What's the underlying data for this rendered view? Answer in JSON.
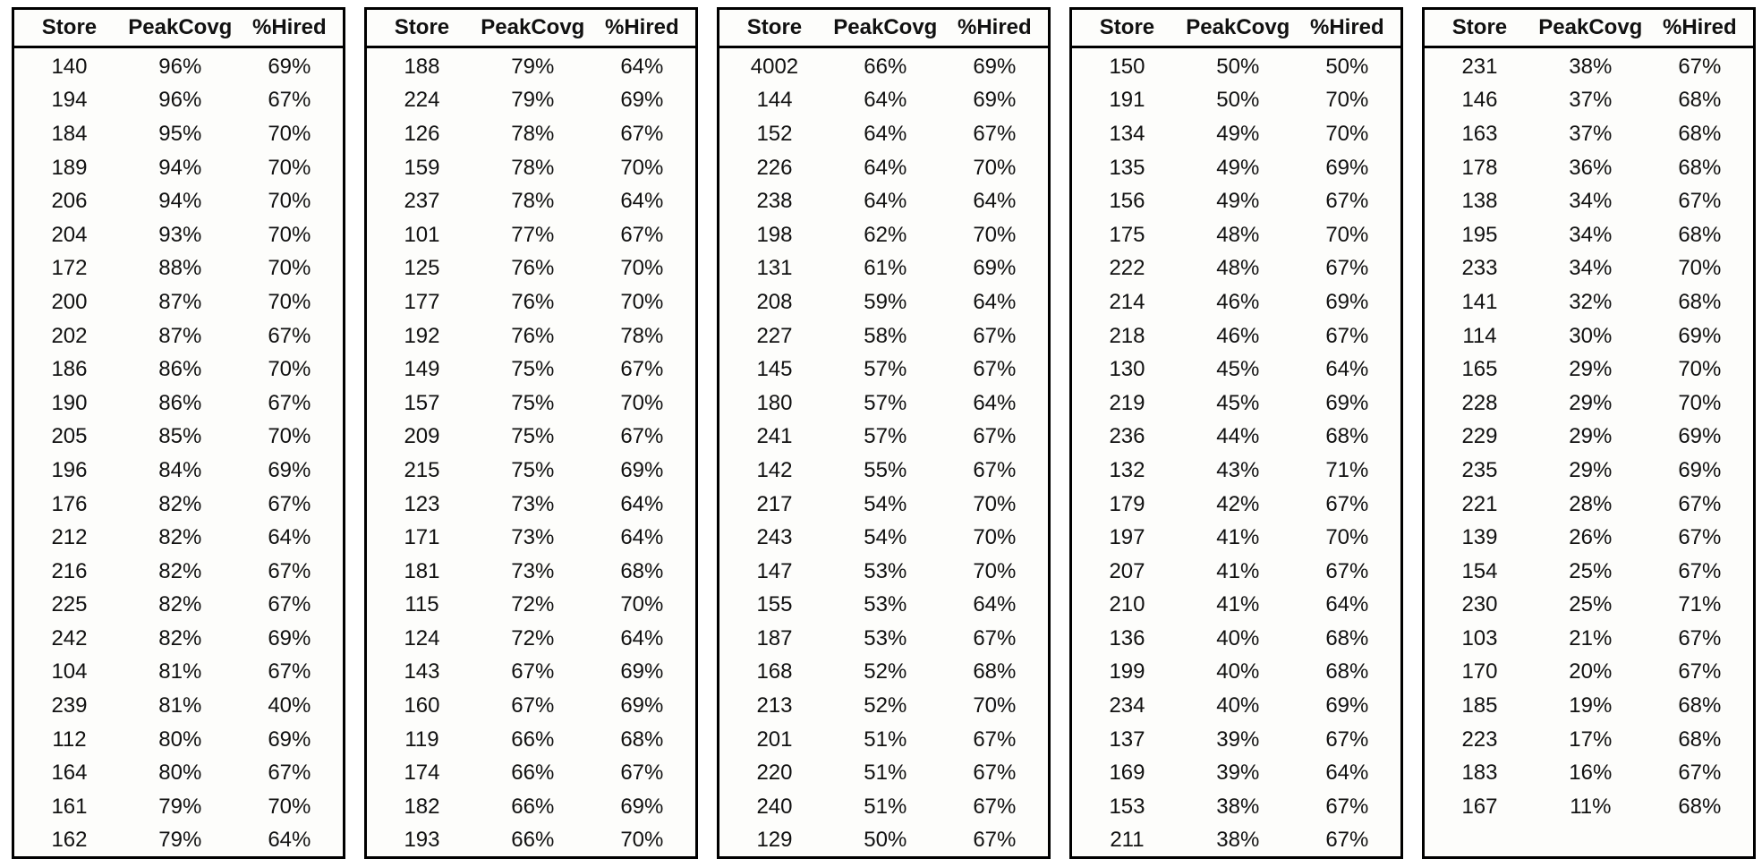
{
  "colors": {
    "border": "#000000",
    "text": "#111111",
    "background": "#ffffff",
    "panel": "#fdfdfb"
  },
  "chart_data": {
    "type": "table",
    "title": "",
    "columns": [
      "Store",
      "PeakCovg",
      "%Hired"
    ],
    "tables": [
      {
        "rows": [
          [
            "140",
            "96%",
            "69%"
          ],
          [
            "194",
            "96%",
            "67%"
          ],
          [
            "184",
            "95%",
            "70%"
          ],
          [
            "189",
            "94%",
            "70%"
          ],
          [
            "206",
            "94%",
            "70%"
          ],
          [
            "204",
            "93%",
            "70%"
          ],
          [
            "172",
            "88%",
            "70%"
          ],
          [
            "200",
            "87%",
            "70%"
          ],
          [
            "202",
            "87%",
            "67%"
          ],
          [
            "186",
            "86%",
            "70%"
          ],
          [
            "190",
            "86%",
            "67%"
          ],
          [
            "205",
            "85%",
            "70%"
          ],
          [
            "196",
            "84%",
            "69%"
          ],
          [
            "176",
            "82%",
            "67%"
          ],
          [
            "212",
            "82%",
            "64%"
          ],
          [
            "216",
            "82%",
            "67%"
          ],
          [
            "225",
            "82%",
            "67%"
          ],
          [
            "242",
            "82%",
            "69%"
          ],
          [
            "104",
            "81%",
            "67%"
          ],
          [
            "239",
            "81%",
            "40%"
          ],
          [
            "112",
            "80%",
            "69%"
          ],
          [
            "164",
            "80%",
            "67%"
          ],
          [
            "161",
            "79%",
            "70%"
          ],
          [
            "162",
            "79%",
            "64%"
          ]
        ]
      },
      {
        "rows": [
          [
            "188",
            "79%",
            "64%"
          ],
          [
            "224",
            "79%",
            "69%"
          ],
          [
            "126",
            "78%",
            "67%"
          ],
          [
            "159",
            "78%",
            "70%"
          ],
          [
            "237",
            "78%",
            "64%"
          ],
          [
            "101",
            "77%",
            "67%"
          ],
          [
            "125",
            "76%",
            "70%"
          ],
          [
            "177",
            "76%",
            "70%"
          ],
          [
            "192",
            "76%",
            "78%"
          ],
          [
            "149",
            "75%",
            "67%"
          ],
          [
            "157",
            "75%",
            "70%"
          ],
          [
            "209",
            "75%",
            "67%"
          ],
          [
            "215",
            "75%",
            "69%"
          ],
          [
            "123",
            "73%",
            "64%"
          ],
          [
            "171",
            "73%",
            "64%"
          ],
          [
            "181",
            "73%",
            "68%"
          ],
          [
            "115",
            "72%",
            "70%"
          ],
          [
            "124",
            "72%",
            "64%"
          ],
          [
            "143",
            "67%",
            "69%"
          ],
          [
            "160",
            "67%",
            "69%"
          ],
          [
            "119",
            "66%",
            "68%"
          ],
          [
            "174",
            "66%",
            "67%"
          ],
          [
            "182",
            "66%",
            "69%"
          ],
          [
            "193",
            "66%",
            "70%"
          ]
        ]
      },
      {
        "rows": [
          [
            "4002",
            "66%",
            "69%"
          ],
          [
            "144",
            "64%",
            "69%"
          ],
          [
            "152",
            "64%",
            "67%"
          ],
          [
            "226",
            "64%",
            "70%"
          ],
          [
            "238",
            "64%",
            "64%"
          ],
          [
            "198",
            "62%",
            "70%"
          ],
          [
            "131",
            "61%",
            "69%"
          ],
          [
            "208",
            "59%",
            "64%"
          ],
          [
            "227",
            "58%",
            "67%"
          ],
          [
            "145",
            "57%",
            "67%"
          ],
          [
            "180",
            "57%",
            "64%"
          ],
          [
            "241",
            "57%",
            "67%"
          ],
          [
            "142",
            "55%",
            "67%"
          ],
          [
            "217",
            "54%",
            "70%"
          ],
          [
            "243",
            "54%",
            "70%"
          ],
          [
            "147",
            "53%",
            "70%"
          ],
          [
            "155",
            "53%",
            "64%"
          ],
          [
            "187",
            "53%",
            "67%"
          ],
          [
            "168",
            "52%",
            "68%"
          ],
          [
            "213",
            "52%",
            "70%"
          ],
          [
            "201",
            "51%",
            "67%"
          ],
          [
            "220",
            "51%",
            "67%"
          ],
          [
            "240",
            "51%",
            "67%"
          ],
          [
            "129",
            "50%",
            "67%"
          ]
        ]
      },
      {
        "rows": [
          [
            "150",
            "50%",
            "50%"
          ],
          [
            "191",
            "50%",
            "70%"
          ],
          [
            "134",
            "49%",
            "70%"
          ],
          [
            "135",
            "49%",
            "69%"
          ],
          [
            "156",
            "49%",
            "67%"
          ],
          [
            "175",
            "48%",
            "70%"
          ],
          [
            "222",
            "48%",
            "67%"
          ],
          [
            "214",
            "46%",
            "69%"
          ],
          [
            "218",
            "46%",
            "67%"
          ],
          [
            "130",
            "45%",
            "64%"
          ],
          [
            "219",
            "45%",
            "69%"
          ],
          [
            "236",
            "44%",
            "68%"
          ],
          [
            "132",
            "43%",
            "71%"
          ],
          [
            "179",
            "42%",
            "67%"
          ],
          [
            "197",
            "41%",
            "70%"
          ],
          [
            "207",
            "41%",
            "67%"
          ],
          [
            "210",
            "41%",
            "64%"
          ],
          [
            "136",
            "40%",
            "68%"
          ],
          [
            "199",
            "40%",
            "68%"
          ],
          [
            "234",
            "40%",
            "69%"
          ],
          [
            "137",
            "39%",
            "67%"
          ],
          [
            "169",
            "39%",
            "64%"
          ],
          [
            "153",
            "38%",
            "67%"
          ],
          [
            "211",
            "38%",
            "67%"
          ]
        ]
      },
      {
        "rows": [
          [
            "231",
            "38%",
            "67%"
          ],
          [
            "146",
            "37%",
            "68%"
          ],
          [
            "163",
            "37%",
            "68%"
          ],
          [
            "178",
            "36%",
            "68%"
          ],
          [
            "138",
            "34%",
            "67%"
          ],
          [
            "195",
            "34%",
            "68%"
          ],
          [
            "233",
            "34%",
            "70%"
          ],
          [
            "141",
            "32%",
            "68%"
          ],
          [
            "114",
            "30%",
            "69%"
          ],
          [
            "165",
            "29%",
            "70%"
          ],
          [
            "228",
            "29%",
            "70%"
          ],
          [
            "229",
            "29%",
            "69%"
          ],
          [
            "235",
            "29%",
            "69%"
          ],
          [
            "221",
            "28%",
            "67%"
          ],
          [
            "139",
            "26%",
            "67%"
          ],
          [
            "154",
            "25%",
            "67%"
          ],
          [
            "230",
            "25%",
            "71%"
          ],
          [
            "103",
            "21%",
            "67%"
          ],
          [
            "170",
            "20%",
            "67%"
          ],
          [
            "185",
            "19%",
            "68%"
          ],
          [
            "223",
            "17%",
            "68%"
          ],
          [
            "183",
            "16%",
            "67%"
          ],
          [
            "167",
            "11%",
            "68%"
          ]
        ]
      }
    ]
  }
}
